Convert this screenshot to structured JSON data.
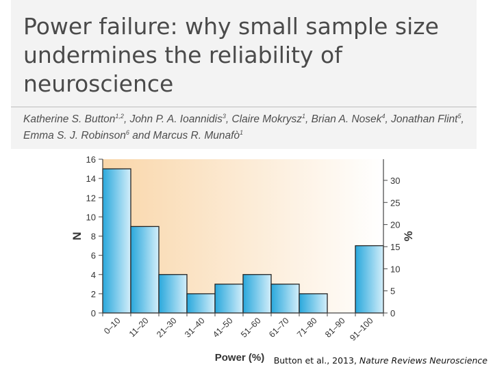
{
  "paper": {
    "title": "Power failure: why small sample size undermines the reliability of neuroscience",
    "authors": [
      {
        "name": "Katherine S. Button",
        "affil": "1,2"
      },
      {
        "name": "John P. A. Ioannidis",
        "affil": "3"
      },
      {
        "name": "Claire Mokrysz",
        "affil": "1"
      },
      {
        "name": "Brian A. Nosek",
        "affil": "4"
      },
      {
        "name": "Jonathan Flint",
        "affil": "5"
      },
      {
        "name": "Emma S. J. Robinson",
        "affil": "6"
      },
      {
        "name": "Marcus R. Munafò",
        "affil": "1"
      }
    ],
    "author_separator": ", ",
    "author_final_separator": " and "
  },
  "citation": {
    "prefix": "Button et al., 2013, ",
    "journal": "Nature Reviews Neuroscience"
  },
  "colors": {
    "bar_fill_start": "#2aa8dc",
    "bar_fill_end": "#d3eefa",
    "bar_stroke": "#222222",
    "background_gradient_left": "#f9d6a9",
    "background_gradient_right": "#ffffff",
    "axis": "#444444",
    "tick_text": "#333333"
  },
  "chart_data": {
    "type": "bar",
    "categories": [
      "0–10",
      "11–20",
      "21–30",
      "31–40",
      "41–50",
      "51–60",
      "61–70",
      "71–80",
      "81–90",
      "91–100"
    ],
    "values": [
      15,
      9,
      4,
      2,
      3,
      4,
      3,
      2,
      0,
      7
    ],
    "xlabel": "Power (%)",
    "ylabel": "N",
    "ylim": [
      0,
      16
    ],
    "yticks": [
      0,
      2,
      4,
      6,
      8,
      10,
      12,
      14,
      16
    ],
    "y2label": "%",
    "y2lim": [
      0,
      34.78
    ],
    "y2ticks": [
      0,
      5,
      10,
      15,
      20,
      25,
      30
    ],
    "grid": false,
    "legend": "none"
  }
}
